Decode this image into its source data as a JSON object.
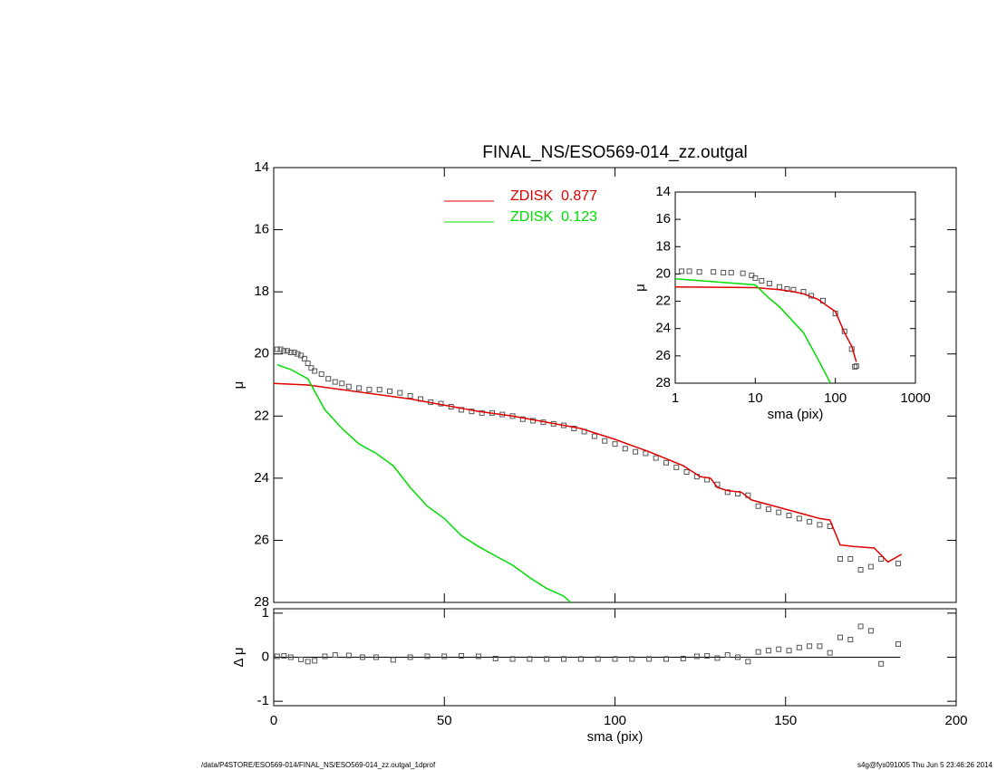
{
  "chart_data": [
    {
      "type": "scatter",
      "title": "FINAL_NS/ESO569-014_zz.outgal",
      "y_label": "μ",
      "xlim": [
        0,
        200
      ],
      "ylim": [
        14,
        28
      ],
      "yaxis_inverted": true,
      "yticks": [
        14,
        16,
        18,
        20,
        22,
        24,
        26,
        28
      ],
      "series": [
        {
          "mode": "markers",
          "color": "#555555",
          "x": [
            1,
            2,
            3,
            4,
            5,
            6,
            7,
            8,
            9,
            10,
            11,
            12,
            14,
            16,
            18,
            20,
            22,
            25,
            28,
            31,
            34,
            37,
            40,
            43,
            46,
            49,
            52,
            55,
            58,
            61,
            64,
            67,
            70,
            73,
            76,
            79,
            82,
            85,
            88,
            91,
            94,
            97,
            100,
            103,
            106,
            109,
            112,
            115,
            118,
            121,
            124,
            127,
            130,
            133,
            136,
            139,
            142,
            145,
            148,
            151,
            154,
            157,
            160,
            163,
            166,
            169,
            172,
            175,
            178,
            183
          ],
          "values": [
            19.85,
            19.85,
            19.9,
            19.9,
            19.95,
            19.95,
            20.0,
            20.05,
            20.15,
            20.3,
            20.45,
            20.55,
            20.65,
            20.8,
            20.9,
            20.95,
            21.05,
            21.1,
            21.15,
            21.15,
            21.2,
            21.25,
            21.35,
            21.45,
            21.55,
            21.6,
            21.7,
            21.8,
            21.85,
            21.9,
            21.9,
            21.95,
            22.0,
            22.1,
            22.15,
            22.2,
            22.25,
            22.3,
            22.4,
            22.5,
            22.65,
            22.8,
            22.9,
            23.05,
            23.15,
            23.2,
            23.35,
            23.5,
            23.65,
            23.8,
            23.95,
            24.05,
            24.2,
            24.45,
            24.5,
            24.55,
            24.9,
            25.0,
            25.1,
            25.2,
            25.3,
            25.4,
            25.5,
            25.55,
            26.6,
            26.6,
            26.95,
            26.85,
            26.6,
            26.75
          ]
        },
        {
          "mode": "line",
          "name": "ZDISK  0.877",
          "color": "#e00000",
          "x": [
            0,
            10,
            20,
            30,
            40,
            50,
            60,
            70,
            80,
            90,
            100,
            110,
            120,
            125,
            128,
            130,
            133,
            137,
            140,
            150,
            160,
            163,
            166,
            170,
            176,
            180,
            184
          ],
          "values": [
            20.95,
            21.0,
            21.15,
            21.3,
            21.45,
            21.65,
            21.85,
            22.0,
            22.2,
            22.4,
            22.75,
            23.15,
            23.6,
            23.95,
            24.0,
            24.3,
            24.4,
            24.45,
            24.7,
            25.0,
            25.3,
            25.35,
            26.15,
            26.2,
            26.25,
            26.7,
            26.45
          ]
        },
        {
          "mode": "line",
          "name": "ZDISK  0.123",
          "color": "#00dd00",
          "x": [
            1,
            5,
            10,
            15,
            20,
            25,
            30,
            35,
            40,
            45,
            50,
            55,
            60,
            65,
            70,
            75,
            80,
            85,
            87
          ],
          "values": [
            20.35,
            20.5,
            20.8,
            21.8,
            22.4,
            22.9,
            23.2,
            23.6,
            24.3,
            24.9,
            25.3,
            25.85,
            26.2,
            26.5,
            26.8,
            27.2,
            27.55,
            27.8,
            28.0
          ]
        }
      ]
    },
    {
      "type": "scatter",
      "x_label": "sma (pix)",
      "y_label": "Δ μ",
      "xlim": [
        0,
        200
      ],
      "xticks": [
        0,
        50,
        100,
        150,
        200
      ],
      "ylim": [
        -1.1,
        1.1
      ],
      "yticks": [
        -1,
        0,
        1
      ],
      "reference_line": 0,
      "series": [
        {
          "mode": "markers",
          "color": "#555555",
          "x": [
            1,
            3,
            5,
            8,
            10,
            12,
            15,
            18,
            22,
            26,
            30,
            35,
            40,
            45,
            50,
            55,
            60,
            65,
            70,
            75,
            80,
            85,
            90,
            95,
            100,
            105,
            110,
            115,
            120,
            124,
            127,
            130,
            133,
            136,
            139,
            142,
            145,
            148,
            151,
            154,
            157,
            160,
            163,
            166,
            169,
            172,
            175,
            178,
            183
          ],
          "values": [
            0.02,
            0.03,
            0.0,
            -0.05,
            -0.1,
            -0.08,
            0.02,
            0.05,
            0.04,
            0.0,
            0.0,
            -0.06,
            0.0,
            0.02,
            0.02,
            0.03,
            0.02,
            -0.03,
            -0.04,
            -0.04,
            -0.04,
            -0.04,
            -0.04,
            -0.04,
            -0.04,
            -0.04,
            -0.04,
            -0.04,
            -0.03,
            0.02,
            0.03,
            -0.02,
            0.05,
            0.0,
            -0.1,
            0.12,
            0.15,
            0.18,
            0.15,
            0.22,
            0.25,
            0.25,
            0.1,
            0.45,
            0.4,
            0.7,
            0.6,
            -0.15,
            0.3
          ]
        }
      ]
    },
    {
      "type": "scatter",
      "x_label": "sma (pix)",
      "y_label": "μ",
      "xscale": "log",
      "xlim": [
        1,
        1000
      ],
      "xticks": [
        1,
        10,
        100,
        1000
      ],
      "ylim": [
        14,
        28
      ],
      "yaxis_inverted": true,
      "yticks": [
        14,
        16,
        18,
        20,
        22,
        24,
        26,
        28
      ],
      "series": [
        {
          "mode": "markers",
          "color": "#555555",
          "x": [
            1.2,
            1.5,
            2,
            3,
            4,
            5,
            7,
            9,
            10,
            12,
            15,
            20,
            25,
            30,
            40,
            50,
            70,
            100,
            130,
            160,
            175,
            183
          ],
          "values": [
            19.8,
            19.8,
            19.85,
            19.85,
            19.9,
            19.9,
            19.95,
            20.1,
            20.3,
            20.5,
            20.7,
            20.95,
            21.1,
            21.15,
            21.3,
            21.6,
            21.95,
            22.9,
            24.2,
            25.5,
            26.8,
            26.75
          ]
        },
        {
          "mode": "line",
          "color": "#e00000",
          "x": [
            1,
            10,
            20,
            30,
            40,
            60,
            100,
            130,
            160,
            183
          ],
          "values": [
            20.95,
            21.0,
            21.15,
            21.3,
            21.45,
            21.85,
            22.75,
            24.3,
            25.3,
            26.45
          ]
        },
        {
          "mode": "line",
          "color": "#00dd00",
          "x": [
            1,
            10,
            15,
            20,
            40,
            60,
            87
          ],
          "values": [
            20.35,
            20.8,
            21.8,
            22.4,
            24.3,
            26.2,
            28.0
          ]
        }
      ]
    }
  ],
  "footer_left": "/data/P4STORE/ESO569-014/FINAL_NS/ESO569-014_zz.outgal_1dprof",
  "footer_right": "s4g@fys091005  Thu Jun  5 23:46:26 2014"
}
